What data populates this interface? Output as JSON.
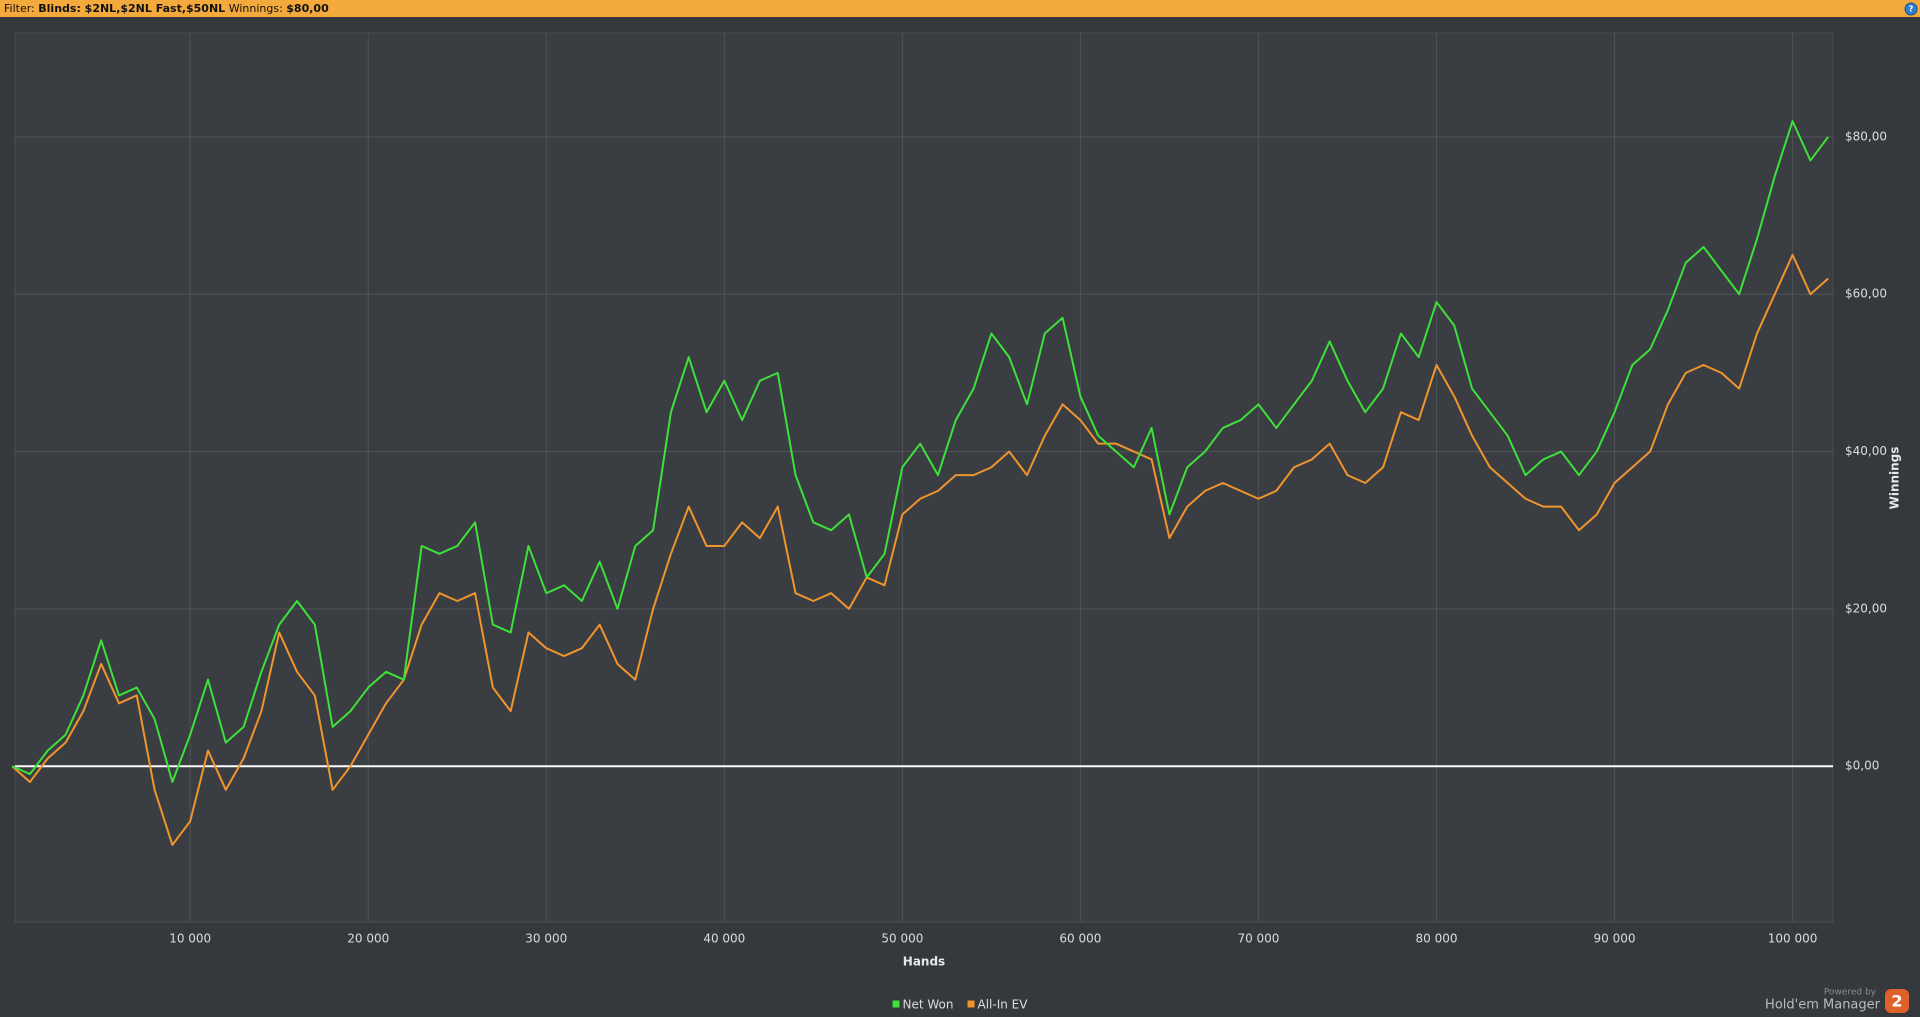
{
  "header": {
    "filter_label": "Filter:",
    "filter_value": "Blinds: $2NL,$2NL Fast,$50NL",
    "winnings_label": "Winnings:",
    "winnings_value": "$80,00"
  },
  "chart_data": {
    "type": "line",
    "x_label": "Hands",
    "y_label": "Winnings",
    "y_axis_side": "right",
    "legend": "bottom",
    "grid": true,
    "xlim": [
      160,
      102270
    ],
    "ylim": [
      -19.8,
      93.2
    ],
    "xticks": [
      {
        "value": 10000,
        "label": "10 000"
      },
      {
        "value": 20000,
        "label": "20 000"
      },
      {
        "value": 30000,
        "label": "30 000"
      },
      {
        "value": 40000,
        "label": "40 000"
      },
      {
        "value": 50000,
        "label": "50 000"
      },
      {
        "value": 60000,
        "label": "60 000"
      },
      {
        "value": 70000,
        "label": "70 000"
      },
      {
        "value": 80000,
        "label": "80 000"
      },
      {
        "value": 90000,
        "label": "90 000"
      },
      {
        "value": 100000,
        "label": "100 000"
      }
    ],
    "yticks": [
      {
        "value": 0,
        "label": "$0,00"
      },
      {
        "value": 20,
        "label": "$20,00"
      },
      {
        "value": 40,
        "label": "$40,00"
      },
      {
        "value": 60,
        "label": "$60,00"
      },
      {
        "value": 80,
        "label": "$80,00"
      }
    ],
    "x": [
      0,
      1000,
      2000,
      3000,
      4000,
      5000,
      6000,
      7000,
      8000,
      9000,
      10000,
      11000,
      12000,
      13000,
      14000,
      15000,
      16000,
      17000,
      18000,
      19000,
      20000,
      21000,
      22000,
      23000,
      24000,
      25000,
      26000,
      27000,
      28000,
      29000,
      30000,
      31000,
      32000,
      33000,
      34000,
      35000,
      36000,
      37000,
      38000,
      39000,
      40000,
      41000,
      42000,
      43000,
      44000,
      45000,
      46000,
      47000,
      48000,
      49000,
      50000,
      51000,
      52000,
      53000,
      54000,
      55000,
      56000,
      57000,
      58000,
      59000,
      60000,
      61000,
      62000,
      63000,
      64000,
      65000,
      66000,
      67000,
      68000,
      69000,
      70000,
      71000,
      72000,
      73000,
      74000,
      75000,
      76000,
      77000,
      78000,
      79000,
      80000,
      81000,
      82000,
      83000,
      84000,
      85000,
      86000,
      87000,
      88000,
      89000,
      90000,
      91000,
      92000,
      93000,
      94000,
      95000,
      96000,
      97000,
      98000,
      99000,
      100000,
      101000,
      102000
    ],
    "series": [
      {
        "name": "Net Won",
        "color": "#3ee03a",
        "values": [
          0,
          -1,
          2,
          4,
          9,
          16,
          9,
          10,
          6,
          -2,
          4,
          11,
          3,
          5,
          12,
          18,
          21,
          18,
          5,
          7,
          10,
          12,
          11,
          28,
          27,
          28,
          31,
          18,
          17,
          28,
          22,
          23,
          21,
          26,
          20,
          28,
          30,
          45,
          52,
          45,
          49,
          44,
          49,
          50,
          37,
          31,
          30,
          32,
          24,
          27,
          38,
          41,
          37,
          44,
          48,
          55,
          52,
          46,
          55,
          57,
          47,
          42,
          40,
          38,
          43,
          32,
          38,
          40,
          43,
          44,
          46,
          43,
          46,
          49,
          54,
          49,
          45,
          48,
          55,
          52,
          59,
          56,
          48,
          45,
          42,
          37,
          39,
          40,
          37,
          40,
          45,
          51,
          53,
          58,
          64,
          66,
          63,
          60,
          67,
          75,
          82,
          77,
          80
        ]
      },
      {
        "name": "All-In EV",
        "color": "#f0952e",
        "values": [
          0,
          -2,
          1,
          3,
          7,
          13,
          8,
          9,
          -3,
          -10,
          -7,
          2,
          -3,
          1,
          7,
          17,
          12,
          9,
          -3,
          0,
          4,
          8,
          11,
          18,
          22,
          21,
          22,
          10,
          7,
          17,
          15,
          14,
          15,
          18,
          13,
          11,
          20,
          27,
          33,
          28,
          28,
          31,
          29,
          33,
          22,
          21,
          22,
          20,
          24,
          23,
          32,
          34,
          35,
          37,
          37,
          38,
          40,
          37,
          42,
          46,
          44,
          41,
          41,
          40,
          39,
          29,
          33,
          35,
          36,
          35,
          34,
          35,
          38,
          39,
          41,
          37,
          36,
          38,
          45,
          44,
          51,
          47,
          42,
          38,
          36,
          34,
          33,
          33,
          30,
          32,
          36,
          38,
          40,
          46,
          50,
          51,
          50,
          48,
          55,
          60,
          65,
          60,
          62
        ]
      }
    ]
  },
  "footer": {
    "powered_by": "Powered by",
    "brand": "Hold'em Manager",
    "logo": "2"
  }
}
